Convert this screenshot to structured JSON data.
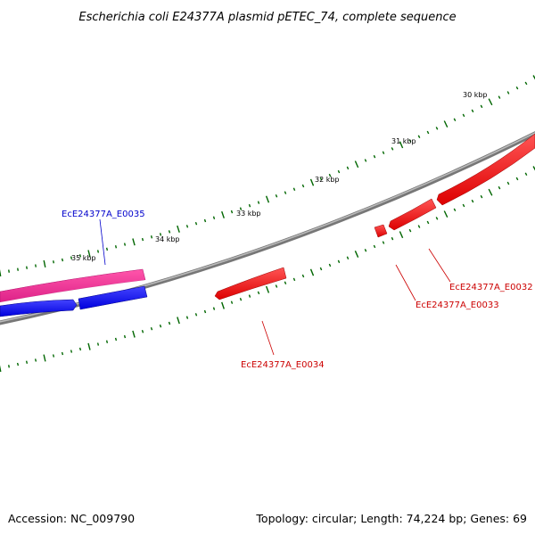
{
  "title": "Escherichia coli E24377A plasmid pETEC_74, complete sequence",
  "footer": {
    "accession": "Accession: NC_009790",
    "summary": "Topology: circular; Length: 74,224 bp; Genes: 69"
  },
  "scale_labels": [
    "30 kbp",
    "31 kbp",
    "32 kbp",
    "33 kbp",
    "34 kbp",
    "35 kbp"
  ],
  "genes": [
    {
      "label": "EcE24377A_E0035",
      "color": "#0000cc"
    },
    {
      "label": "EcE24377A_E0034",
      "color": "#cc0000"
    },
    {
      "label": "EcE24377A_E0033",
      "color": "#cc0000"
    },
    {
      "label": "EcE24377A_E0032",
      "color": "#cc0000"
    }
  ],
  "colors": {
    "backbone": "#888888",
    "tick": "#006600",
    "forward_gene": "#ff0000",
    "reverse_gene": "#0000ff",
    "other_feature": "#ee3399"
  }
}
